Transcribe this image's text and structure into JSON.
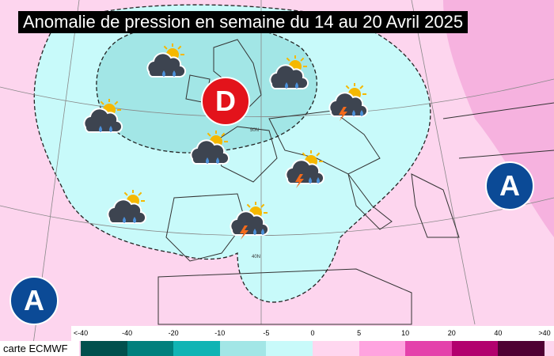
{
  "title": "Anomalie de pression en semaine du 14 au 20 Avril 2025",
  "source_label": "carte ECMWF",
  "legend": {
    "ticks": [
      "<-40",
      "-40",
      "-20",
      "-10",
      "-5",
      "0",
      "5",
      "10",
      "20",
      "40",
      ">40"
    ],
    "colors": [
      "#00504d",
      "#00807d",
      "#10b4b4",
      "#a2e6e6",
      "#c8fafa",
      "#ffd6ef",
      "#ffa3df",
      "#e442ab",
      "#b2006e",
      "#4f0033"
    ]
  },
  "centers": [
    {
      "label": "D",
      "type": "low",
      "color": "#e3131b"
    },
    {
      "label": "A",
      "type": "high",
      "color": "#0b4a96"
    },
    {
      "label": "A",
      "type": "high",
      "color": "#0b4a96"
    }
  ],
  "weather_icons": [
    {
      "type": "sun-cloud-rain"
    },
    {
      "type": "sun-cloud-rain"
    },
    {
      "type": "sun-cloud-rain"
    },
    {
      "type": "sun-cloud-storm"
    },
    {
      "type": "sun-cloud-rain"
    },
    {
      "type": "sun-cloud-storm"
    },
    {
      "type": "sun-cloud-rain"
    },
    {
      "type": "sun-cloud-storm"
    }
  ],
  "graticule_labels": [
    "50N",
    "40N"
  ]
}
